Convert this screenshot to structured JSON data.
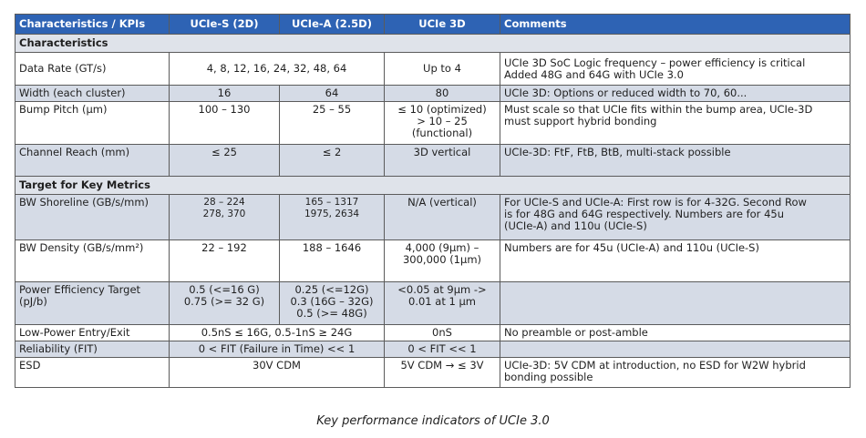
{
  "header": {
    "col1": "Characteristics / KPIs",
    "col2": "UCIe-S (2D)",
    "col3": "UCIe-A (2.5D)",
    "col4": "UCIe 3D",
    "col5": "Comments"
  },
  "sections": {
    "characteristics": "Characteristics",
    "target": "Target for Key Metrics"
  },
  "rows": {
    "data_rate": {
      "label": "Data Rate (GT/s)",
      "sa": "4, 8, 12, 16, 24, 32, 48, 64",
      "d3": "Up to 4",
      "comment_1": "UCIe 3D SoC Logic frequency – power efficiency is critical",
      "comment_2": "Added 48G and 64G with UCIe 3.0"
    },
    "width": {
      "label": "Width (each cluster)",
      "s": "16",
      "a": "64",
      "d3": "80",
      "comment": "UCIe 3D: Options or reduced width to 70, 60..."
    },
    "bump": {
      "label": "Bump Pitch (µm)",
      "s": "100 – 130",
      "a": "25 – 55",
      "d3_1": "≤ 10 (optimized)",
      "d3_2": "> 10 – 25",
      "d3_3": "(functional)",
      "comment_1": "Must scale so that UCIe fits within the bump area, UCIe-3D",
      "comment_2": "must support hybrid bonding"
    },
    "channel": {
      "label": "Channel Reach (mm)",
      "s": "≤ 25",
      "a": "≤ 2",
      "d3": "3D vertical",
      "comment": "UCIe-3D: FtF, FtB, BtB, multi-stack possible"
    },
    "bw_shoreline": {
      "label": "BW Shoreline (GB/s/mm)",
      "s_1": "28 – 224",
      "s_2": "278, 370",
      "a_1": "165 – 1317",
      "a_2": "1975, 2634",
      "d3": "N/A (vertical)",
      "comment_1": "For UCIe-S and UCIe-A: First row is for 4-32G. Second Row",
      "comment_2": "is for 48G and 64G respectively. Numbers are for 45u",
      "comment_3": "(UCIe-A) and 110u (UCIe-S)"
    },
    "bw_density": {
      "label": "BW Density (GB/s/mm²)",
      "s": "22 – 192",
      "a": "188 – 1646",
      "d3_1": "4,000 (9µm) –",
      "d3_2": "300,000 (1µm)",
      "comment": "Numbers are for 45u (UCIe-A) and 110u (UCIe-S)"
    },
    "power": {
      "label_1": "Power Efficiency Target",
      "label_2": "(pJ/b)",
      "s_1": "0.5 (<=16 G)",
      "s_2": "0.75 (>= 32 G)",
      "a_1": "0.25 (<=12G)",
      "a_2": "0.3 (16G – 32G)",
      "a_3": "0.5 (>= 48G)",
      "d3_1": "<0.05 at 9µm ->",
      "d3_2": "0.01 at 1 µm",
      "comment": ""
    },
    "low_power": {
      "label": "Low-Power Entry/Exit",
      "sa": "0.5nS ≤ 16G, 0.5-1nS ≥ 24G",
      "d3": "0nS",
      "comment": "No preamble or post-amble"
    },
    "reliability": {
      "label": "Reliability (FIT)",
      "sa": "0 < FIT (Failure in Time) << 1",
      "d3": "0 < FIT << 1",
      "comment": ""
    },
    "esd": {
      "label": "ESD",
      "sa": "30V CDM",
      "d3": "5V CDM → ≤ 3V",
      "comment_1": "UCIe-3D: 5V CDM at introduction, no ESD for W2W hybrid",
      "comment_2": "bonding possible"
    }
  },
  "caption": "Key performance indicators of UCIe 3.0",
  "colors": {
    "header_bg": "#2e63b4",
    "section_bg": "#dfe3ea",
    "shade_bg": "#d5dbe6",
    "border": "#5b5b5b"
  }
}
